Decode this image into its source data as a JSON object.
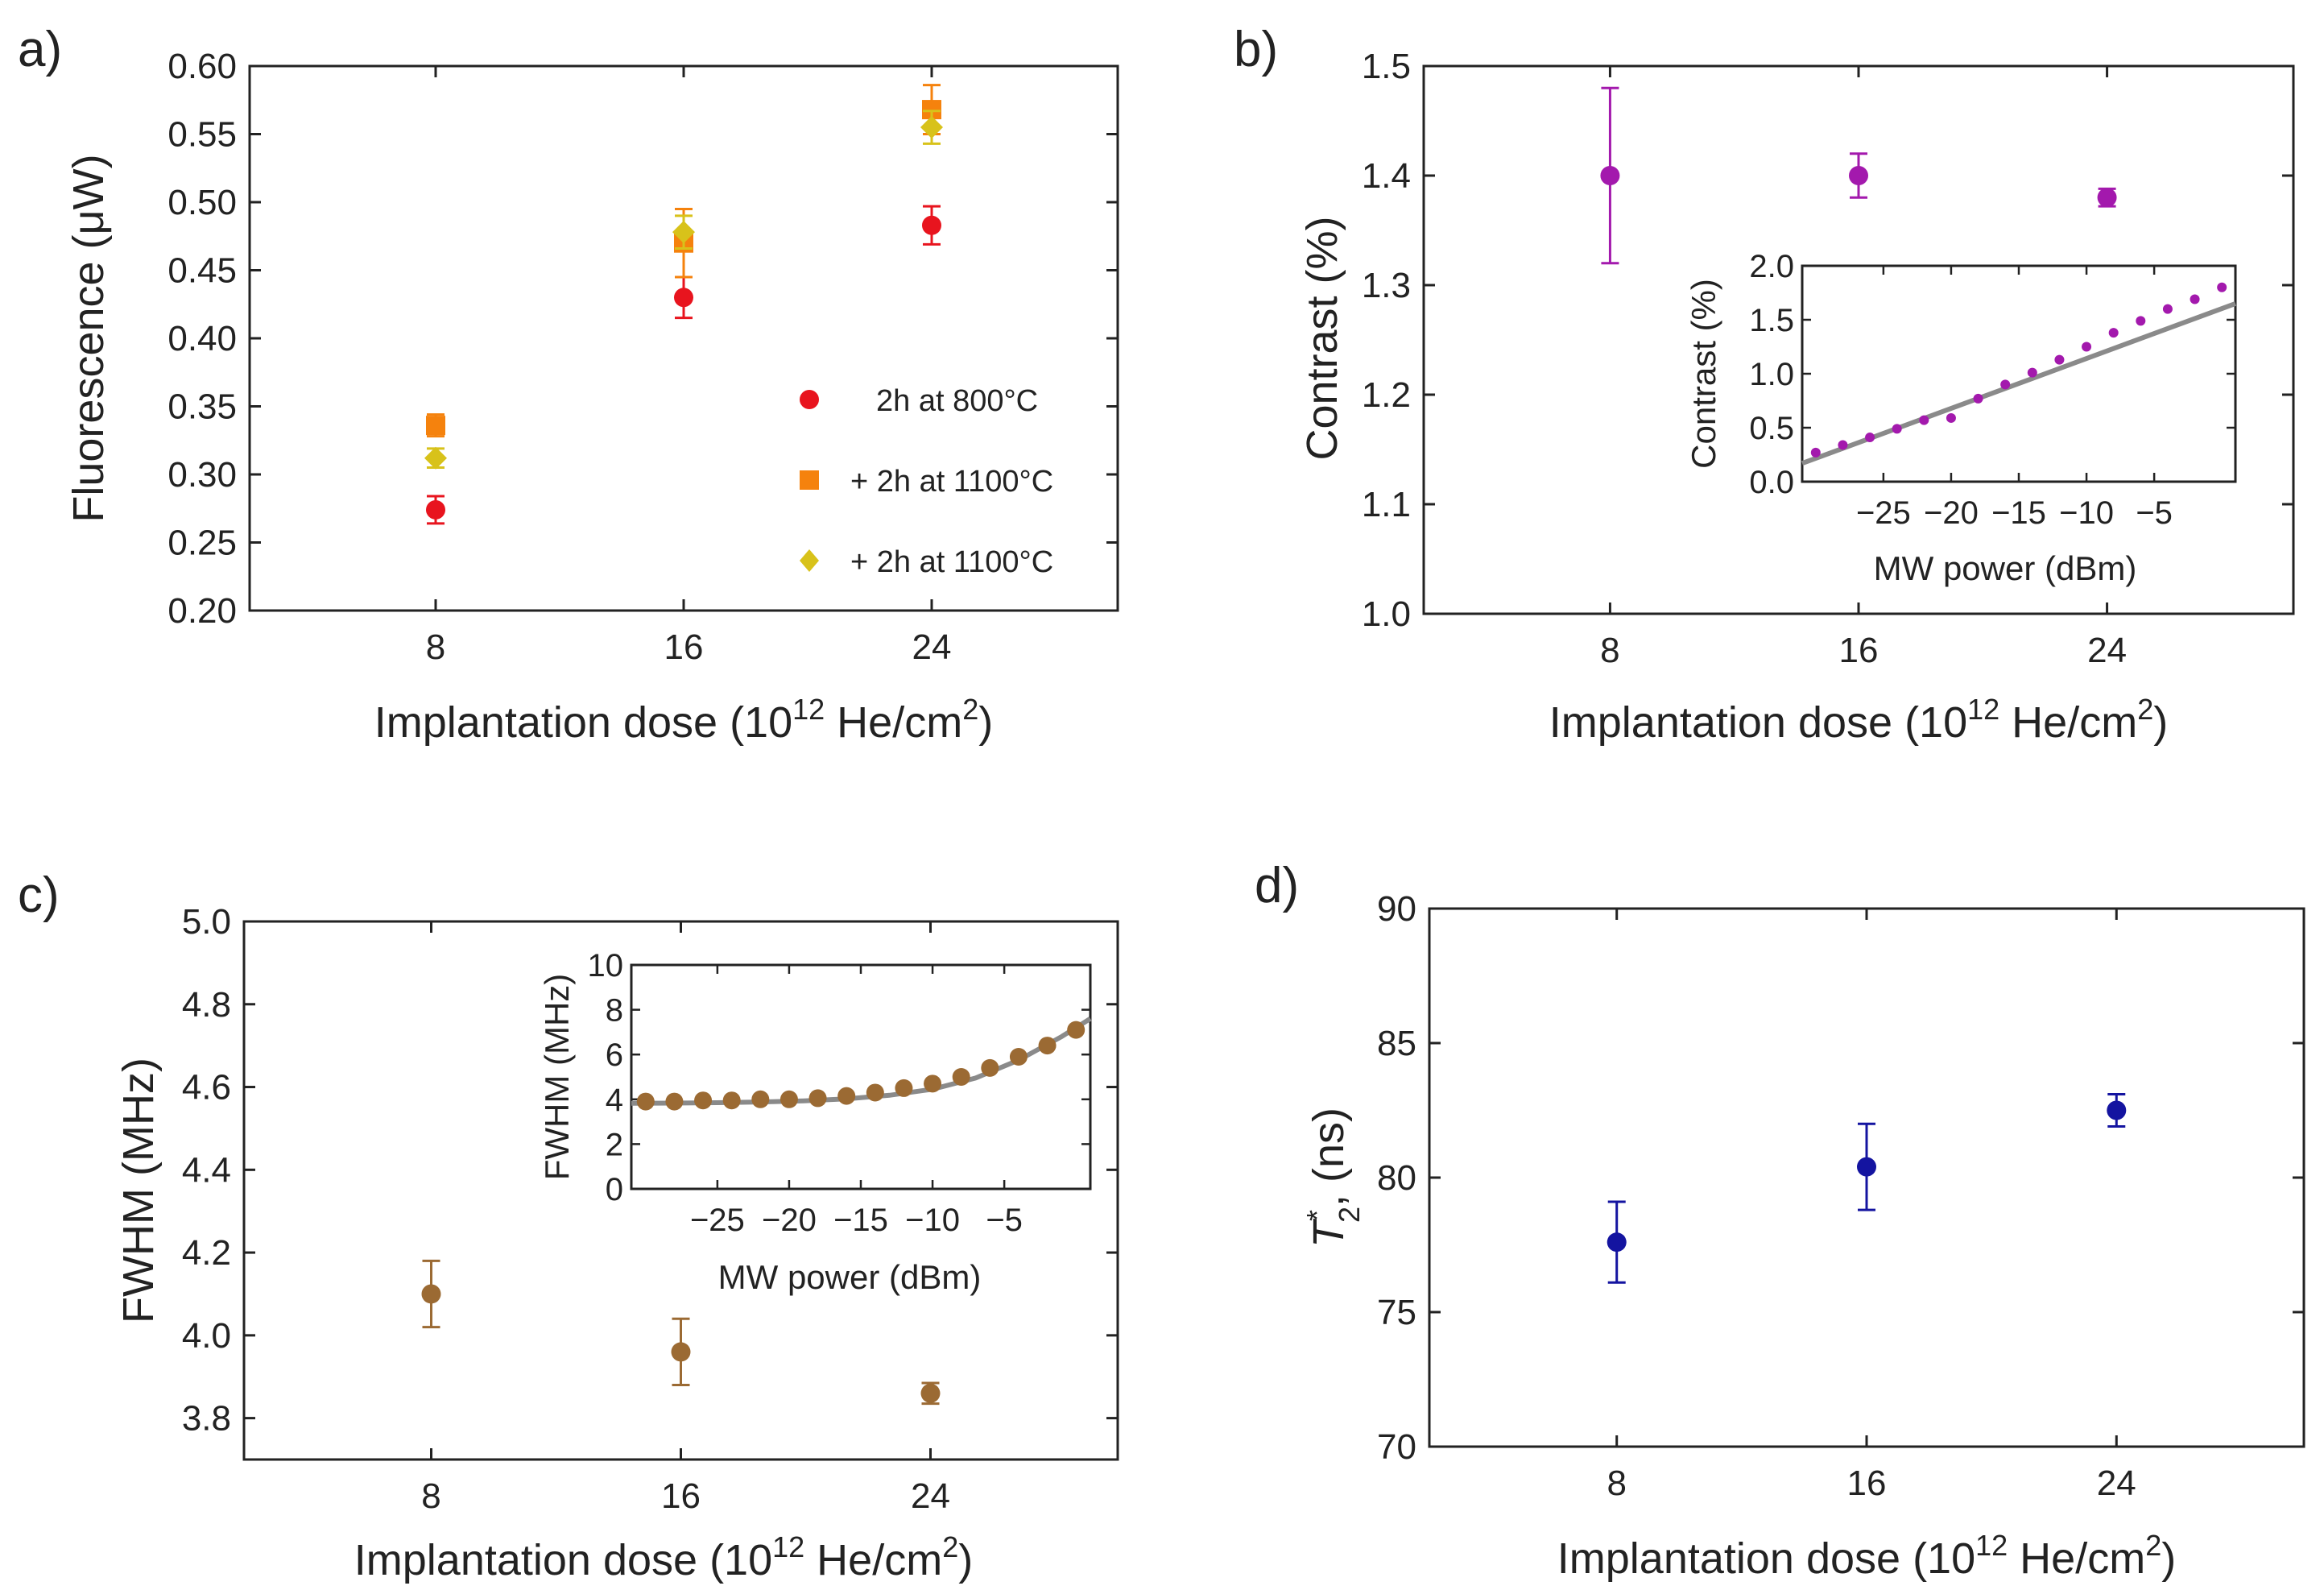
{
  "chart_data": [
    {
      "panel": "a)",
      "type": "scatter",
      "xlabel": "Implantation dose (10",
      "xlabel_sup": "12",
      "xlabel_tail": " He/cm",
      "xlabel_sup2": "2",
      "xlabel_end": ")",
      "ylabel": "Fluorescence (μW)",
      "xlim": [
        2,
        30
      ],
      "ylim": [
        0.2,
        0.6
      ],
      "xticks": [
        8,
        16,
        24
      ],
      "yticks": [
        "0.20",
        "0.25",
        "0.30",
        "0.35",
        "0.40",
        "0.45",
        "0.50",
        "0.55",
        "0.60"
      ],
      "series": [
        {
          "name": "2h at 800°C",
          "color": "#e8141e",
          "marker": "circle",
          "x": [
            8,
            16,
            24
          ],
          "y": [
            0.274,
            0.43,
            0.483
          ],
          "err": [
            0.01,
            0.015,
            0.014
          ]
        },
        {
          "name": "+ 2h at 1100°C",
          "color": "#f5820d",
          "marker": "square",
          "x": [
            8,
            16,
            24
          ],
          "y": [
            0.336,
            0.47,
            0.568
          ],
          "err": [
            0.008,
            0.025,
            0.018
          ]
        },
        {
          "name": "+ 2h at 1100°C",
          "color": "#d8c21a",
          "marker": "diamond",
          "x": [
            8,
            16,
            24
          ],
          "y": [
            0.312,
            0.478,
            0.555
          ],
          "err": [
            0.007,
            0.012,
            0.012
          ]
        }
      ]
    },
    {
      "panel": "b)",
      "type": "scatter",
      "xlabel": "Implantation dose (10",
      "xlabel_sup": "12",
      "xlabel_tail": " He/cm",
      "xlabel_sup2": "2",
      "xlabel_end": ")",
      "ylabel": "Contrast (%)",
      "xlim": [
        2,
        30
      ],
      "ylim": [
        1.0,
        1.5
      ],
      "xticks": [
        8,
        16,
        24
      ],
      "yticks": [
        "1.0",
        "1.1",
        "1.2",
        "1.3",
        "1.4",
        "1.5"
      ],
      "series": [
        {
          "name": "contrast",
          "color": "#a319ad",
          "marker": "circle",
          "x": [
            8,
            16,
            24
          ],
          "y": [
            1.4,
            1.4,
            1.38
          ],
          "err": [
            0.08,
            0.02,
            0.008
          ]
        }
      ],
      "inset": {
        "type": "scatter",
        "xlabel": "MW power (dBm)",
        "ylabel": "Contrast (%)",
        "xlim": [
          -31,
          1
        ],
        "ylim": [
          0,
          2.0
        ],
        "xticks": [
          -25,
          -20,
          -15,
          -10,
          -5
        ],
        "xticklabels": [
          "−25",
          "−20",
          "−15",
          "−10",
          "−5"
        ],
        "yticks": [
          "0.0",
          "0.5",
          "1.0",
          "1.5",
          "2.0"
        ],
        "color": "#a319ad",
        "x": [
          -30,
          -28,
          -26,
          -24,
          -22,
          -20,
          -18,
          -16,
          -14,
          -12,
          -10,
          -8,
          -6,
          -4,
          -2,
          0
        ],
        "y": [
          0.27,
          0.34,
          0.41,
          0.49,
          0.57,
          0.59,
          0.77,
          0.9,
          1.01,
          1.13,
          1.25,
          1.38,
          1.49,
          1.6,
          1.69,
          1.8
        ],
        "fit": {
          "color": "#8a8a8a",
          "x": [
            -31,
            1
          ],
          "y": [
            0.17,
            1.65
          ]
        }
      }
    },
    {
      "panel": "c)",
      "type": "scatter",
      "xlabel": "Implantation dose (10",
      "xlabel_sup": "12",
      "xlabel_tail": " He/cm",
      "xlabel_sup2": "2",
      "xlabel_end": ")",
      "ylabel": "FWHM (MHz)",
      "xlim": [
        2,
        30
      ],
      "ylim": [
        3.7,
        5.0
      ],
      "xticks": [
        8,
        16,
        24
      ],
      "yticks": [
        "3.8",
        "4.0",
        "4.2",
        "4.4",
        "4.6",
        "4.8",
        "5.0"
      ],
      "series": [
        {
          "name": "fwhm",
          "color": "#9b6a33",
          "marker": "circle",
          "x": [
            8,
            16,
            24
          ],
          "y": [
            4.1,
            3.96,
            3.86
          ],
          "err": [
            0.08,
            0.08,
            0.025
          ]
        }
      ],
      "inset": {
        "type": "scatter",
        "xlabel": "MW power (dBm)",
        "ylabel": "FWHM (MHz)",
        "xlim": [
          -31,
          1
        ],
        "ylim": [
          0,
          10
        ],
        "xticks": [
          -25,
          -20,
          -15,
          -10,
          -5
        ],
        "xticklabels": [
          "−25",
          "−20",
          "−15",
          "−10",
          "−5"
        ],
        "yticks": [
          "0",
          "2",
          "4",
          "6",
          "8",
          "10"
        ],
        "color": "#9b6a33",
        "x": [
          -30,
          -28,
          -26,
          -24,
          -22,
          -20,
          -18,
          -16,
          -14,
          -12,
          -10,
          -8,
          -6,
          -4,
          -2,
          0
        ],
        "y": [
          3.9,
          3.9,
          3.95,
          3.95,
          4.0,
          4.0,
          4.05,
          4.15,
          4.3,
          4.5,
          4.7,
          5.0,
          5.4,
          5.9,
          6.4,
          7.1
        ],
        "fit": {
          "color": "#8a8a8a",
          "x": [
            -31,
            -28,
            -25,
            -22,
            -19,
            -16,
            -13,
            -10,
            -7,
            -4,
            -1,
            1
          ],
          "y": [
            3.82,
            3.83,
            3.85,
            3.88,
            3.93,
            4.02,
            4.18,
            4.45,
            4.95,
            5.75,
            6.8,
            7.6
          ]
        }
      }
    },
    {
      "panel": "d)",
      "type": "scatter",
      "xlabel": "Implantation dose (10",
      "xlabel_sup": "12",
      "xlabel_tail": " He/cm",
      "xlabel_sup2": "2",
      "xlabel_end": ")",
      "ylabel_main": "T",
      "ylabel_sup": "*",
      "ylabel_sub": "2",
      "ylabel_tail": ", (ns)",
      "xlim": [
        2,
        30
      ],
      "ylim": [
        70,
        90
      ],
      "xticks": [
        8,
        16,
        24
      ],
      "yticks": [
        "70",
        "75",
        "80",
        "85",
        "90"
      ],
      "series": [
        {
          "name": "t2star",
          "color": "#1414a0",
          "marker": "circle",
          "x": [
            8,
            16,
            24
          ],
          "y": [
            77.6,
            80.4,
            82.5
          ],
          "err": [
            1.5,
            1.6,
            0.6
          ]
        }
      ]
    }
  ]
}
